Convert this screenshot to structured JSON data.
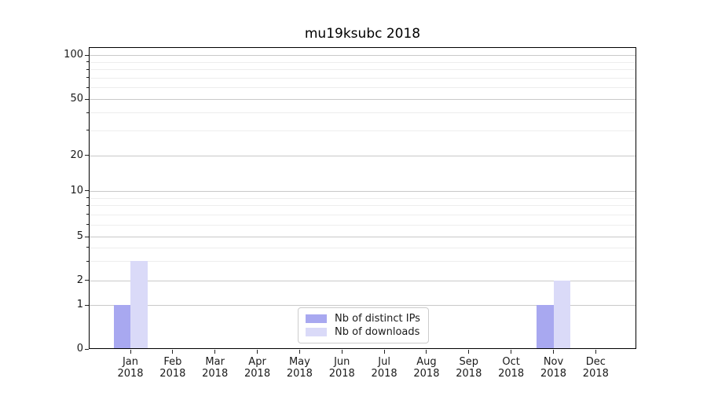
{
  "figure": {
    "background": "#ffffff"
  },
  "chart_data": {
    "type": "bar",
    "title": "mu19ksubc 2018",
    "categories": [
      "Jan",
      "Feb",
      "Mar",
      "Apr",
      "May",
      "Jun",
      "Jul",
      "Aug",
      "Sep",
      "Oct",
      "Nov",
      "Dec"
    ],
    "category_year": "2018",
    "series": [
      {
        "name": "Nb of distinct IPs",
        "color": "#a8a8f0",
        "values": [
          1,
          0,
          0,
          0,
          0,
          0,
          0,
          0,
          0,
          0,
          1,
          0
        ]
      },
      {
        "name": "Nb of downloads",
        "color": "#dadaf8",
        "values": [
          3,
          0,
          0,
          0,
          0,
          0,
          0,
          0,
          0,
          0,
          2,
          0
        ]
      }
    ],
    "xlabel": "",
    "ylabel": "",
    "yscale": "log-with-zero",
    "y_ticks": [
      0,
      1,
      2,
      5,
      10,
      20,
      50,
      100
    ],
    "y_minor_ticks": [
      3,
      4,
      6,
      7,
      8,
      9,
      30,
      40,
      60,
      70,
      80,
      90
    ],
    "ylim": [
      0,
      115
    ],
    "grid": "horizontal",
    "legend_position": "lower center"
  },
  "colors": {
    "grid_major": "#c9c9c9",
    "grid_minor": "#ededed",
    "axis": "#000000",
    "text": "#1a1a1a",
    "legend_border": "#cccccc"
  }
}
